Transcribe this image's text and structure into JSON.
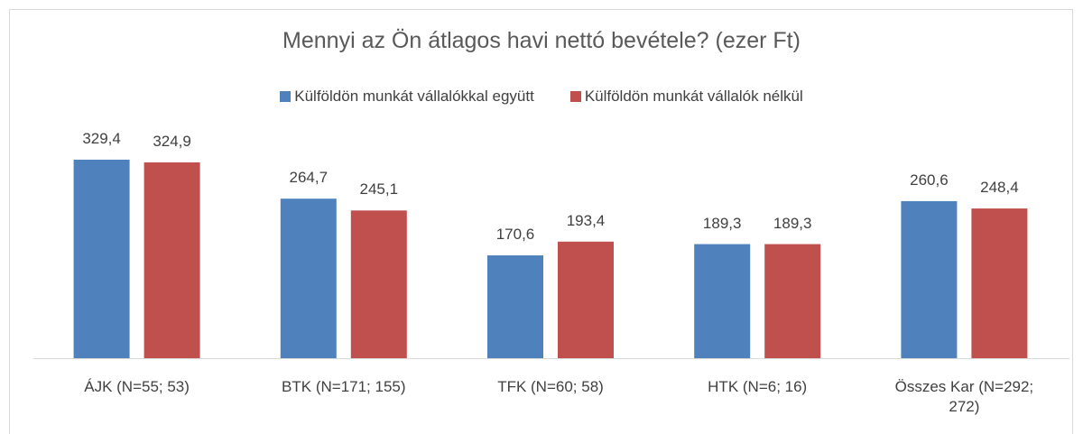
{
  "chart_data": {
    "type": "bar",
    "title": "Mennyi az Ön átlagos havi nettó bevétele? (ezer Ft)",
    "categories": [
      "ÁJK (N=55; 53)",
      "BTK (N=171; 155)",
      "TFK (N=60; 58)",
      "HTK (N=6; 16)",
      "Összes Kar (N=292; 272)"
    ],
    "series": [
      {
        "name": "Külföldön munkát vállalókkal együtt",
        "color": "#4f81bd",
        "values": [
          329.4,
          264.7,
          170.6,
          189.3,
          260.6
        ],
        "value_labels": [
          "329,4",
          "264,7",
          "170,6",
          "189,3",
          "260,6"
        ]
      },
      {
        "name": "Külföldön munkát vállalók nélkül",
        "color": "#c0504d",
        "values": [
          324.9,
          245.1,
          193.4,
          189.3,
          248.4
        ],
        "value_labels": [
          "324,9",
          "245,1",
          "193,4",
          "189,3",
          "248,4"
        ]
      }
    ],
    "legend": "top"
  }
}
